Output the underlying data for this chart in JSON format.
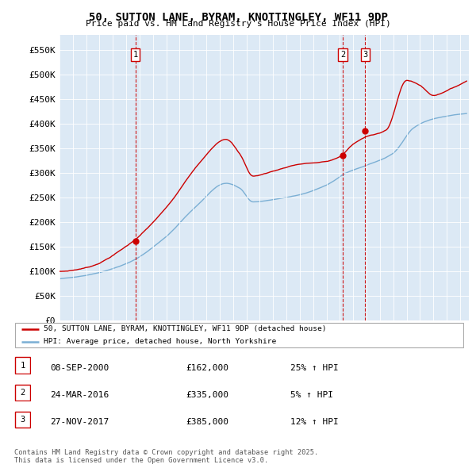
{
  "title": "50, SUTTON LANE, BYRAM, KNOTTINGLEY, WF11 9DP",
  "subtitle": "Price paid vs. HM Land Registry's House Price Index (HPI)",
  "bg_color": "#dce9f5",
  "red_line_color": "#cc0000",
  "blue_line_color": "#7bafd4",
  "ylabel_ticks": [
    "£0",
    "£50K",
    "£100K",
    "£150K",
    "£200K",
    "£250K",
    "£300K",
    "£350K",
    "£400K",
    "£450K",
    "£500K",
    "£550K"
  ],
  "ytick_values": [
    0,
    50000,
    100000,
    150000,
    200000,
    250000,
    300000,
    350000,
    400000,
    450000,
    500000,
    550000
  ],
  "ylim": [
    0,
    580000
  ],
  "sale_dates": [
    "2000-09-08",
    "2016-03-24",
    "2017-11-27"
  ],
  "sale_prices": [
    162000,
    335000,
    385000
  ],
  "vline_color": "#cc0000",
  "legend_label_red": "50, SUTTON LANE, BYRAM, KNOTTINGLEY, WF11 9DP (detached house)",
  "legend_label_blue": "HPI: Average price, detached house, North Yorkshire",
  "table_data": [
    [
      "1",
      "08-SEP-2000",
      "£162,000",
      "25% ↑ HPI"
    ],
    [
      "2",
      "24-MAR-2016",
      "£335,000",
      "5% ↑ HPI"
    ],
    [
      "3",
      "27-NOV-2017",
      "£385,000",
      "12% ↑ HPI"
    ]
  ],
  "footnote": "Contains HM Land Registry data © Crown copyright and database right 2025.\nThis data is licensed under the Open Government Licence v3.0."
}
